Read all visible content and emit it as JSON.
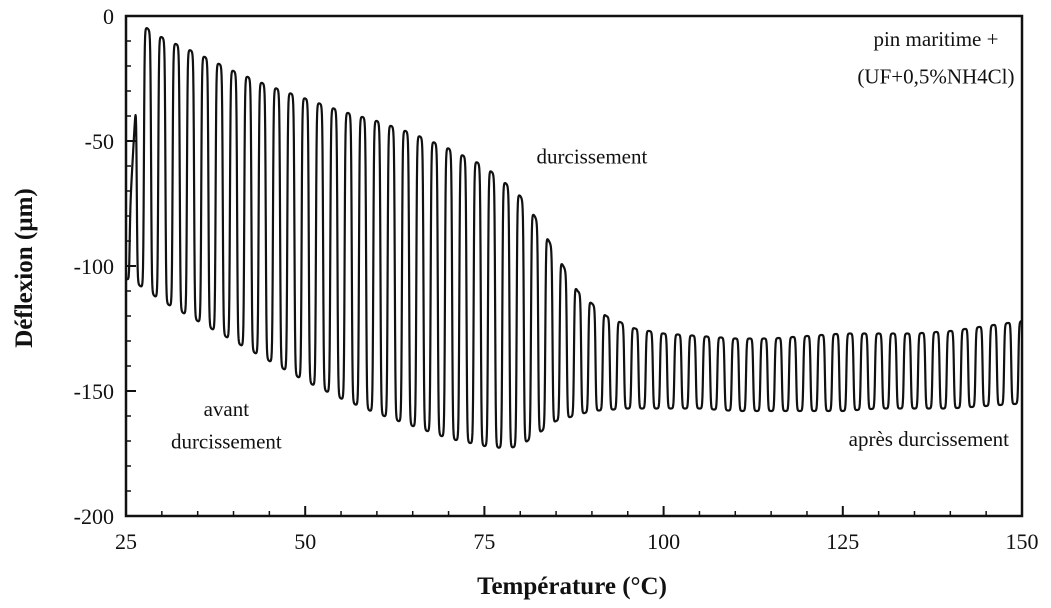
{
  "chart_data": {
    "type": "line",
    "title": "",
    "xlabel": "Température (°C)",
    "ylabel": "Déflexion (µm)",
    "xlim": [
      25,
      150
    ],
    "ylim": [
      -200,
      0
    ],
    "xticks": [
      25,
      50,
      75,
      100,
      125,
      150
    ],
    "yticks": [
      0,
      -50,
      -100,
      -150,
      -200
    ],
    "grid": false,
    "legend": "none",
    "line_color": "#111111",
    "oscillation_period_c": 2.0,
    "series": [
      {
        "upper_envelope": {
          "x": [
            25,
            27,
            29,
            31,
            35,
            40,
            45,
            50,
            55,
            60,
            65,
            70,
            75,
            78,
            80,
            82,
            85,
            88,
            92,
            96,
            100,
            105,
            110,
            115,
            120,
            125,
            130,
            135,
            140,
            145,
            150
          ],
          "y": [
            -105,
            -3,
            -7,
            -10,
            -15,
            -22,
            -28,
            -33,
            -38,
            -42,
            -47,
            -53,
            -60,
            -67,
            -72,
            -80,
            -95,
            -110,
            -120,
            -125,
            -127,
            -128,
            -129,
            -129,
            -128,
            -127,
            -127,
            -127,
            -126,
            -124,
            -122
          ]
        },
        "lower_envelope": {
          "x": [
            25,
            27,
            30,
            35,
            40,
            45,
            50,
            55,
            60,
            65,
            70,
            75,
            78,
            80,
            82,
            85,
            90,
            95,
            100,
            105,
            110,
            115,
            120,
            125,
            130,
            135,
            140,
            145,
            150
          ],
          "y": [
            -105,
            -108,
            -114,
            -122,
            -130,
            -138,
            -146,
            -153,
            -159,
            -164,
            -169,
            -172,
            -173,
            -172,
            -168,
            -162,
            -158,
            -157,
            -157,
            -157,
            -158,
            -158,
            -158,
            -158,
            -157,
            -157,
            -157,
            -156,
            -155
          ]
        }
      }
    ],
    "annotations": [
      {
        "text": "pin maritime +",
        "x": 138,
        "y": -12
      },
      {
        "text": "(UF+0,5%NH4Cl)",
        "x": 138,
        "y": -27
      },
      {
        "text": "durcissement",
        "x": 90,
        "y": -59
      },
      {
        "text": "avant",
        "x": 39,
        "y": -160
      },
      {
        "text": "durcissement",
        "x": 39,
        "y": -173
      },
      {
        "text": "après durcissement",
        "x": 137,
        "y": -172
      }
    ]
  }
}
